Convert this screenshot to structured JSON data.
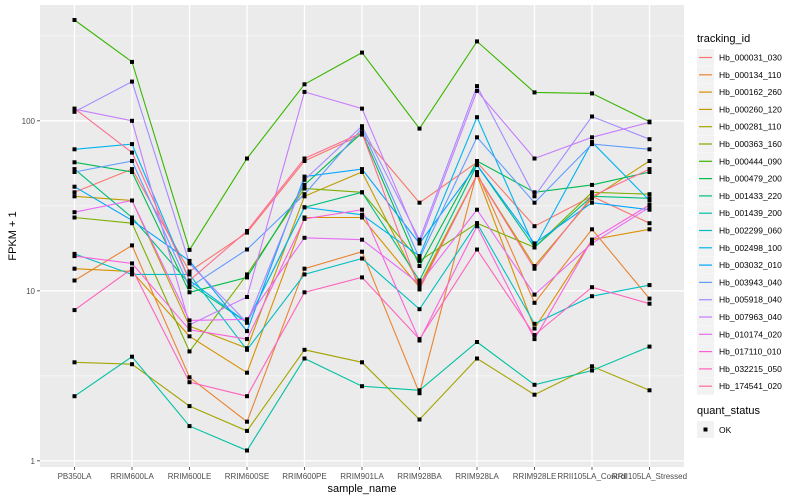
{
  "chart_data": {
    "type": "line",
    "title": "",
    "xlabel": "sample_name",
    "ylabel": "FPKM + 1",
    "yscale": "log10",
    "ylim": [
      0.92,
      480
    ],
    "yticks": [
      1,
      10,
      100
    ],
    "ytick_labels": [
      "1",
      "10",
      "100"
    ],
    "categories": [
      "PB350LA",
      "RRIM600LA",
      "RRIM600LE",
      "RRIM600SE",
      "RRIM600PE",
      "RRIM901LA",
      "RRIM928BA",
      "RRIM928LA",
      "RRIM928LE",
      "RRII105LA_Control",
      "RRII105LA_Stressed"
    ],
    "grid": true,
    "legend_position": "right",
    "legends": [
      {
        "title": "tracking_id",
        "kind": "color"
      },
      {
        "title": "quant_status",
        "kind": "shape",
        "entries": [
          {
            "label": "OK",
            "marker": "square"
          }
        ]
      }
    ],
    "series": [
      {
        "name": "Hb_000031_030",
        "color": "#F8766D",
        "values": [
          38,
          52,
          13,
          22,
          58,
          83,
          33,
          57,
          24,
          36,
          25
        ]
      },
      {
        "name": "Hb_000134_110",
        "color": "#EA8331",
        "values": [
          11.5,
          18.5,
          3.1,
          1.7,
          13.5,
          17,
          2.5,
          50,
          8.5,
          23,
          9
        ]
      },
      {
        "name": "Hb_000162_260",
        "color": "#D89000",
        "values": [
          13.5,
          13,
          5.4,
          3.3,
          27,
          27,
          10.5,
          48,
          6,
          20,
          23
        ]
      },
      {
        "name": "Hb_000260_120",
        "color": "#C09B00",
        "values": [
          36,
          34,
          6.2,
          4.6,
          36,
          50,
          10.8,
          48,
          14,
          35,
          58
        ]
      },
      {
        "name": "Hb_000281_110",
        "color": "#A3A500",
        "values": [
          3.8,
          3.7,
          2.1,
          1.5,
          4.5,
          3.8,
          1.75,
          4.0,
          2.45,
          3.6,
          2.6
        ]
      },
      {
        "name": "Hb_000363_160",
        "color": "#7CAE00",
        "values": [
          27,
          25,
          4.4,
          12.5,
          40,
          38,
          15,
          25,
          18,
          38,
          37
        ]
      },
      {
        "name": "Hb_000444_090",
        "color": "#39B600",
        "values": [
          392,
          222,
          17.4,
          60,
          164,
          252,
          90,
          293,
          147,
          145,
          99
        ]
      },
      {
        "name": "Hb_000479_200",
        "color": "#00BB4E",
        "values": [
          57,
          50,
          9.8,
          12,
          42,
          85,
          14,
          58,
          38,
          42,
          50
        ]
      },
      {
        "name": "Hb_001433_220",
        "color": "#00BF7D",
        "values": [
          52,
          27,
          11,
          6.5,
          31,
          38,
          11.5,
          55,
          18,
          36,
          35
        ]
      },
      {
        "name": "Hb_001439_200",
        "color": "#00C1A3",
        "values": [
          2.4,
          4.1,
          1.6,
          1.15,
          4.0,
          2.75,
          2.6,
          5.0,
          2.8,
          3.4,
          4.7
        ]
      },
      {
        "name": "Hb_002299_060",
        "color": "#00BFC4",
        "values": [
          16.5,
          12.5,
          12.5,
          4.5,
          12.5,
          15.5,
          7.8,
          25,
          6.4,
          9.3,
          10.8
        ]
      },
      {
        "name": "Hb_002498_100",
        "color": "#00B4EF",
        "values": [
          68,
          73,
          11.5,
          6.5,
          31,
          28,
          16,
          105,
          18,
          75,
          34
        ]
      },
      {
        "name": "Hb_003032_010",
        "color": "#00A5FF",
        "values": [
          41,
          26,
          15,
          5.8,
          47,
          52,
          19,
          55,
          19,
          33,
          30
        ]
      },
      {
        "name": "Hb_003943_040",
        "color": "#619CFF",
        "values": [
          50,
          58,
          10.5,
          17.5,
          37,
          90,
          15.5,
          80,
          33,
          73,
          68
        ]
      },
      {
        "name": "Hb_005918_040",
        "color": "#A58AFF",
        "values": [
          113,
          170,
          14.5,
          6.5,
          45,
          93,
          20,
          160,
          36,
          106,
          78
        ]
      },
      {
        "name": "Hb_007963_040",
        "color": "#C77CFF",
        "values": [
          117,
          100,
          6.3,
          9.2,
          148,
          118,
          19,
          150,
          60,
          80,
          98
        ]
      },
      {
        "name": "Hb_010174_020",
        "color": "#E76BF3",
        "values": [
          29,
          34,
          6.7,
          6.8,
          20.5,
          20,
          11,
          30,
          9.5,
          19,
          31
        ]
      },
      {
        "name": "Hb_017110_010",
        "color": "#FA62DB",
        "values": [
          16,
          14.5,
          5.9,
          5.2,
          26.5,
          30,
          5.1,
          24,
          5.2,
          20,
          32
        ]
      },
      {
        "name": "Hb_032215_050",
        "color": "#FF62BC",
        "values": [
          7.7,
          13.5,
          2.9,
          2.4,
          9.8,
          12,
          5.2,
          17.5,
          5.5,
          10.5,
          8.4
        ]
      },
      {
        "name": "Hb_174541_020",
        "color": "#FF6C91",
        "values": [
          118,
          65,
          11.5,
          22.5,
          60,
          85,
          10.2,
          48,
          13.5,
          36,
          52
        ]
      }
    ]
  }
}
